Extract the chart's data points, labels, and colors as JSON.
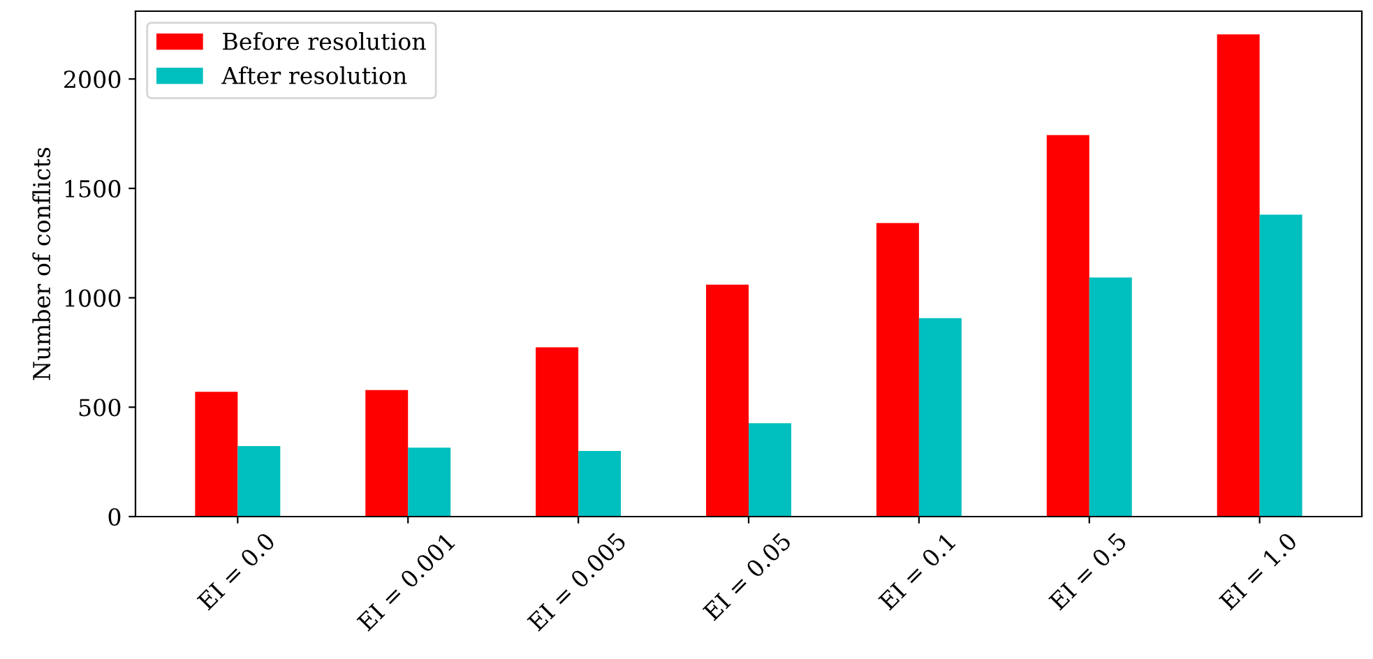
{
  "chart_data": {
    "type": "bar",
    "ylabel": "Number of conflicts",
    "categories": [
      "EI = 0.0",
      "EI = 0.001",
      "EI = 0.005",
      "EI = 0.05",
      "EI = 0.1",
      "EI = 0.5",
      "EI = 1.0"
    ],
    "series": [
      {
        "name": "Before resolution",
        "color": "#ff0000",
        "values": [
          570,
          578,
          774,
          1060,
          1342,
          1744,
          2204
        ]
      },
      {
        "name": "After resolution",
        "color": "#00bfbf",
        "values": [
          322,
          315,
          300,
          427,
          907,
          1093,
          1380
        ]
      }
    ],
    "ylim": [
      0,
      2310
    ],
    "yticks": [
      0,
      500,
      1000,
      1500,
      2000
    ],
    "legend": "top left",
    "grid": false
  }
}
